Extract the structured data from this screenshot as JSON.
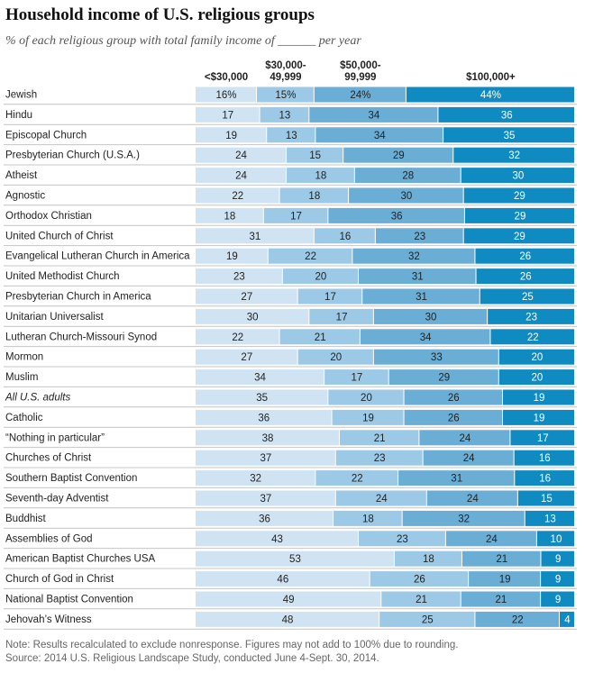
{
  "title": "Household income of U.S. religious groups",
  "subtitle": "% of each religious group with total family income of ______ per year",
  "notes": {
    "note": "Note: Results recalculated to exclude nonresponse. Figures may not add to 100% due to rounding.",
    "source": "Source: 2014 U.S. Religious Landscape Study, conducted June 4-Sept. 30, 2014."
  },
  "colors": [
    "#cfe3f2",
    "#9cc9e6",
    "#6aaed6",
    "#0f8bc1"
  ],
  "chart_data": {
    "type": "bar",
    "orientation": "horizontal",
    "stacked": true,
    "unit": "%",
    "series_labels": [
      [
        "<$30,000"
      ],
      [
        "$30,000-",
        "49,999"
      ],
      [
        "$50,000-",
        "99,999"
      ],
      [
        "$100,000+"
      ]
    ],
    "categories": [
      "Jewish",
      "Hindu",
      "Episcopal Church",
      "Presbyterian Church (U.S.A.)",
      "Atheist",
      "Agnostic",
      "Orthodox Christian",
      "United Church of Christ",
      "Evangelical Lutheran Church in America",
      "United Methodist Church",
      "Presbyterian Church in America",
      "Unitarian Universalist",
      "Lutheran Church-Missouri Synod",
      "Mormon",
      "Muslim",
      "All U.S. adults",
      "Catholic",
      "“Nothing in particular”",
      "Churches of Christ",
      "Southern Baptist Convention",
      "Seventh-day Adventist",
      "Buddhist",
      "Assemblies of God",
      "American Baptist Churches USA",
      "Church of God in Christ",
      "National Baptist Convention",
      "Jehovah’s Witness"
    ],
    "italic_category": "All U.S. adults",
    "percent_sign_rows": [
      "Jewish"
    ],
    "values": [
      [
        16,
        15,
        24,
        44
      ],
      [
        17,
        13,
        34,
        36
      ],
      [
        19,
        13,
        34,
        35
      ],
      [
        24,
        15,
        29,
        32
      ],
      [
        24,
        18,
        28,
        30
      ],
      [
        22,
        18,
        30,
        29
      ],
      [
        18,
        17,
        36,
        29
      ],
      [
        31,
        16,
        23,
        29
      ],
      [
        19,
        22,
        32,
        26
      ],
      [
        23,
        20,
        31,
        26
      ],
      [
        27,
        17,
        31,
        25
      ],
      [
        30,
        17,
        30,
        23
      ],
      [
        22,
        21,
        34,
        22
      ],
      [
        27,
        20,
        33,
        20
      ],
      [
        34,
        17,
        29,
        20
      ],
      [
        35,
        20,
        26,
        19
      ],
      [
        36,
        19,
        26,
        19
      ],
      [
        38,
        21,
        24,
        17
      ],
      [
        37,
        23,
        24,
        16
      ],
      [
        32,
        22,
        31,
        16
      ],
      [
        37,
        24,
        24,
        15
      ],
      [
        36,
        18,
        32,
        13
      ],
      [
        43,
        23,
        24,
        10
      ],
      [
        53,
        18,
        21,
        9
      ],
      [
        46,
        26,
        19,
        9
      ],
      [
        49,
        21,
        21,
        9
      ],
      [
        48,
        25,
        22,
        4
      ]
    ]
  }
}
